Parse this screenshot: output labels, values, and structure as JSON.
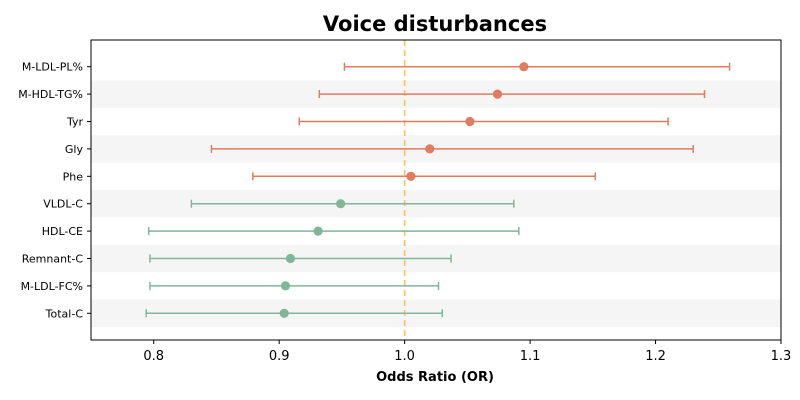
{
  "chart_data": {
    "type": "scatter",
    "subtype": "forest-plot",
    "title": "Voice disturbances",
    "xlabel": "Odds Ratio (OR)",
    "xlim": [
      0.75,
      1.3
    ],
    "xticks": [
      0.8,
      0.9,
      1.0,
      1.1,
      1.2,
      1.3
    ],
    "xtick_labels": [
      "0.8",
      "0.9",
      "1.0",
      "1.1",
      "1.2",
      "1.3"
    ],
    "reference_line": 1.0,
    "grid": false,
    "alternating_row_bands": true,
    "colors": {
      "positive": "#E07B5F",
      "negative": "#82B59A",
      "reference": "#F0C277",
      "band": "#F5F5F5"
    },
    "rows": [
      {
        "label": "M-LDL-PL%",
        "or": 1.095,
        "lower": 0.952,
        "upper": 1.259,
        "group": "positive"
      },
      {
        "label": "M-HDL-TG%",
        "or": 1.074,
        "lower": 0.932,
        "upper": 1.239,
        "group": "positive"
      },
      {
        "label": "Tyr",
        "or": 1.052,
        "lower": 0.916,
        "upper": 1.21,
        "group": "positive"
      },
      {
        "label": "Gly",
        "or": 1.02,
        "lower": 0.846,
        "upper": 1.23,
        "group": "positive"
      },
      {
        "label": "Phe",
        "or": 1.005,
        "lower": 0.879,
        "upper": 1.152,
        "group": "positive"
      },
      {
        "label": "VLDL-C",
        "or": 0.949,
        "lower": 0.83,
        "upper": 1.087,
        "group": "negative"
      },
      {
        "label": "HDL-CE",
        "or": 0.931,
        "lower": 0.796,
        "upper": 1.091,
        "group": "negative"
      },
      {
        "label": "Remnant-C",
        "or": 0.909,
        "lower": 0.797,
        "upper": 1.037,
        "group": "negative"
      },
      {
        "label": "M-LDL-FC%",
        "or": 0.905,
        "lower": 0.797,
        "upper": 1.027,
        "group": "negative"
      },
      {
        "label": "Total-C",
        "or": 0.904,
        "lower": 0.794,
        "upper": 1.03,
        "group": "negative"
      }
    ]
  }
}
